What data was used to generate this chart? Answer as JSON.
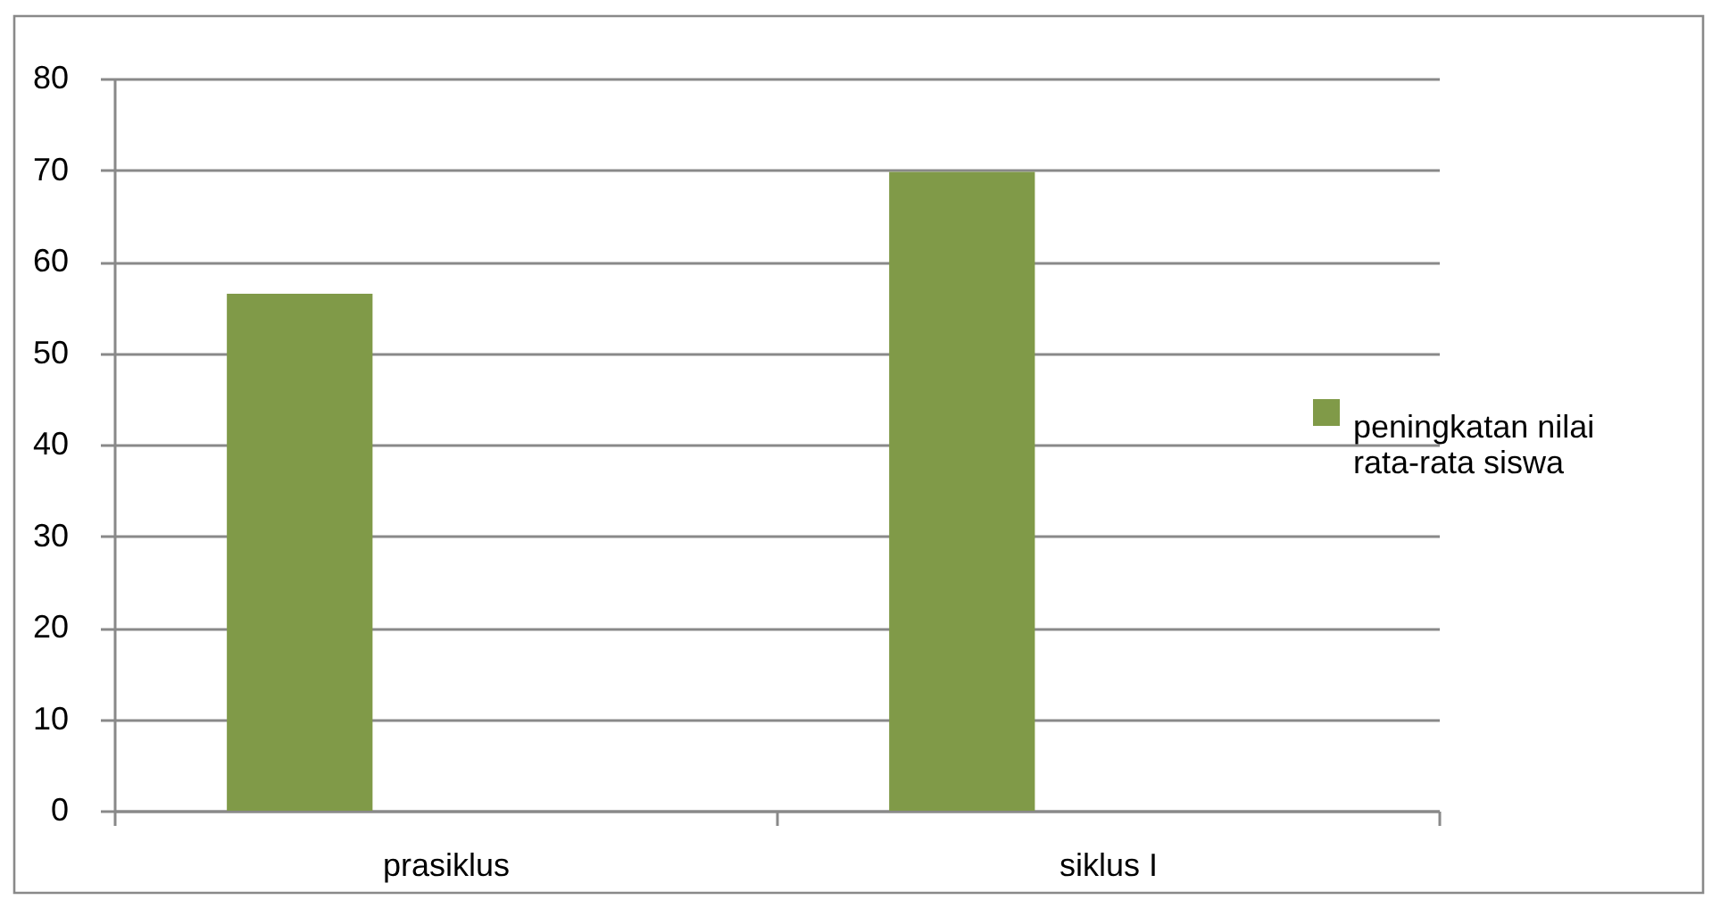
{
  "chart_data": {
    "type": "bar",
    "categories": [
      "prasiklus",
      "siklus I"
    ],
    "series": [
      {
        "name": "peningkatan nilai rata-rata siswa",
        "color": "#809a48",
        "values": [
          56.5,
          69.8
        ]
      }
    ],
    "ylim": [
      0,
      80
    ],
    "yticks": [
      0,
      10,
      20,
      30,
      40,
      50,
      60,
      70,
      80
    ],
    "grid": "y",
    "legend": "right"
  }
}
